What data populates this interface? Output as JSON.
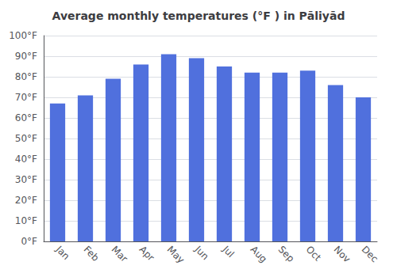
{
  "chart_data": {
    "type": "bar",
    "title": "Average monthly temperatures (°F ) in Pāliyād",
    "categories": [
      "Jan",
      "Feb",
      "Mar",
      "Apr",
      "May",
      "Jun",
      "Jul",
      "Aug",
      "Sep",
      "Oct",
      "Nov",
      "Dec"
    ],
    "values": [
      67,
      71,
      79,
      86,
      91,
      89,
      85,
      82,
      82,
      83,
      76,
      70
    ],
    "ylim": [
      0,
      100
    ],
    "yticks": [
      {
        "value": 0,
        "label": "0°F"
      },
      {
        "value": 10,
        "label": "10°F"
      },
      {
        "value": 20,
        "label": "20°F"
      },
      {
        "value": 30,
        "label": "30°F"
      },
      {
        "value": 40,
        "label": "40°F"
      },
      {
        "value": 50,
        "label": "50°F"
      },
      {
        "value": 60,
        "label": "60°F"
      },
      {
        "value": 70,
        "label": "70°F"
      },
      {
        "value": 80,
        "label": "80°F"
      },
      {
        "value": 90,
        "label": "90°F"
      },
      {
        "value": 100,
        "label": "100°F"
      }
    ],
    "grid": true
  }
}
